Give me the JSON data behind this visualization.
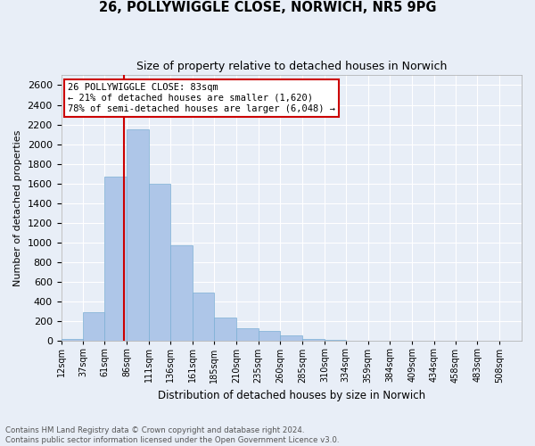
{
  "title_line1": "26, POLLYWIGGLE CLOSE, NORWICH, NR5 9PG",
  "title_line2": "Size of property relative to detached houses in Norwich",
  "xlabel": "Distribution of detached houses by size in Norwich",
  "ylabel": "Number of detached properties",
  "bar_color": "#aec6e8",
  "bar_edge_color": "#7bafd4",
  "annotation_box_color": "#cc0000",
  "annotation_text": "26 POLLYWIGGLE CLOSE: 83sqm\n← 21% of detached houses are smaller (1,620)\n78% of semi-detached houses are larger (6,048) →",
  "property_line_x": 83,
  "categories": [
    "12sqm",
    "37sqm",
    "61sqm",
    "86sqm",
    "111sqm",
    "136sqm",
    "161sqm",
    "185sqm",
    "210sqm",
    "235sqm",
    "260sqm",
    "285sqm",
    "310sqm",
    "334sqm",
    "359sqm",
    "384sqm",
    "409sqm",
    "434sqm",
    "458sqm",
    "483sqm",
    "508sqm"
  ],
  "bin_edges": [
    12,
    37,
    61,
    86,
    111,
    136,
    161,
    185,
    210,
    235,
    260,
    285,
    310,
    334,
    359,
    384,
    409,
    434,
    458,
    483,
    508,
    533
  ],
  "values": [
    25,
    290,
    1670,
    2150,
    1600,
    975,
    490,
    240,
    130,
    100,
    55,
    25,
    15,
    5,
    5,
    2,
    2,
    1,
    1,
    1,
    0
  ],
  "ylim": [
    0,
    2700
  ],
  "yticks": [
    0,
    200,
    400,
    600,
    800,
    1000,
    1200,
    1400,
    1600,
    1800,
    2000,
    2200,
    2400,
    2600
  ],
  "footer_line1": "Contains HM Land Registry data © Crown copyright and database right 2024.",
  "footer_line2": "Contains public sector information licensed under the Open Government Licence v3.0.",
  "background_color": "#e8eef7",
  "plot_background_color": "#e8eef7"
}
